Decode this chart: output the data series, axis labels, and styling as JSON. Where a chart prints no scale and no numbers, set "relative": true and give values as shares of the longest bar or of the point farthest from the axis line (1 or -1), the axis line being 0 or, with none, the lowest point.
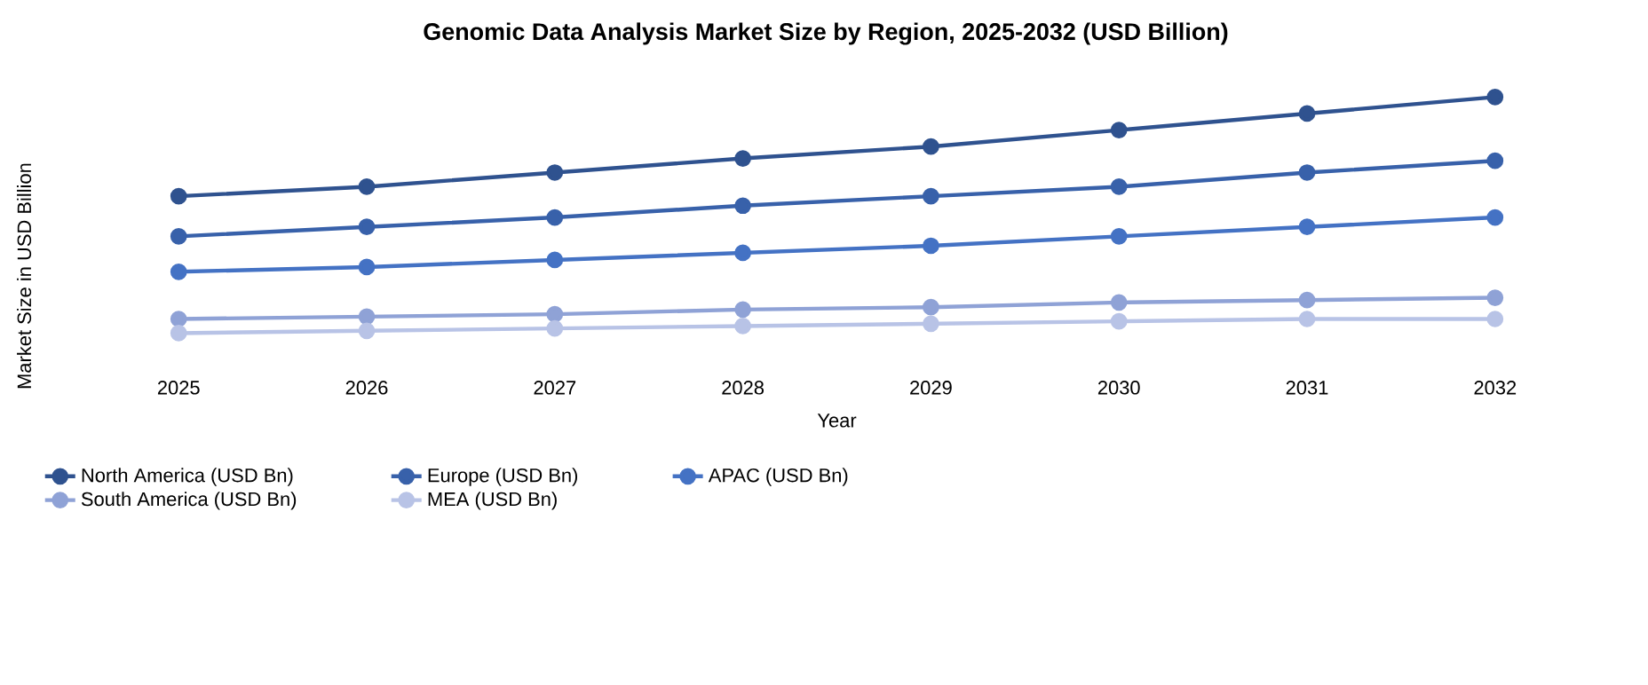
{
  "chart_data": {
    "type": "line",
    "title": "Genomic Data Analysis Market Size by Region, 2025-2032 (USD Billion)",
    "xlabel": "Year",
    "ylabel": "Market Size in USD Billion",
    "categories": [
      "2025",
      "2026",
      "2027",
      "2028",
      "2029",
      "2030",
      "2031",
      "2032"
    ],
    "relative": true,
    "legend": "bottom",
    "marker": "circle",
    "line_style": "solid",
    "grid": false,
    "series": [
      {
        "name": "North America (USD Bn)",
        "color": "#2f528f",
        "values": [
          0.58,
          0.62,
          0.68,
          0.74,
          0.79,
          0.86,
          0.93,
          1
        ]
      },
      {
        "name": "Europe (USD Bn)",
        "color": "#3861aa",
        "values": [
          0.41,
          0.45,
          0.49,
          0.54,
          0.58,
          0.62,
          0.68,
          0.73
        ]
      },
      {
        "name": "APAC (USD Bn)",
        "color": "#4472c4",
        "values": [
          0.26,
          0.28,
          0.31,
          0.34,
          0.37,
          0.41,
          0.45,
          0.49
        ]
      },
      {
        "name": "South America (USD Bn)",
        "color": "#8fa2d6",
        "values": [
          0.06,
          0.07,
          0.08,
          0.1,
          0.11,
          0.13,
          0.14,
          0.15
        ]
      },
      {
        "name": "MEA (USD Bn)",
        "color": "#b8c3e6",
        "values": [
          0,
          0.01,
          0.02,
          0.03,
          0.04,
          0.05,
          0.06,
          0.06
        ]
      }
    ]
  }
}
